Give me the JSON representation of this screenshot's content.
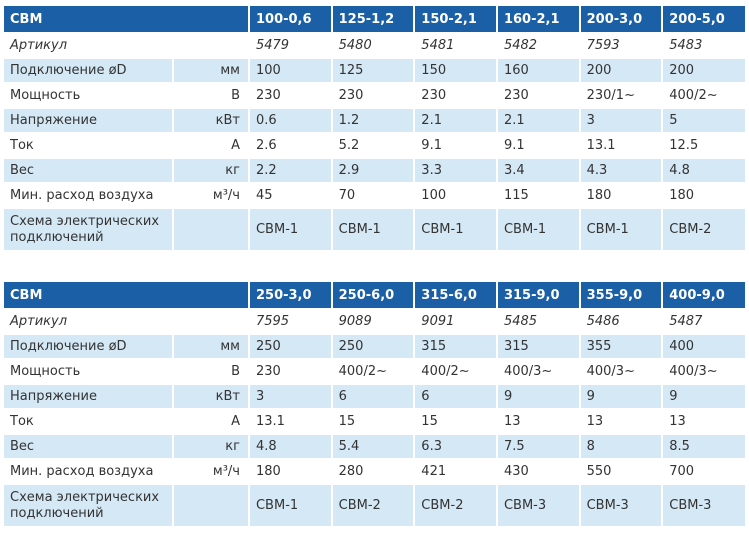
{
  "tables": [
    {
      "brand": "CBM",
      "models": [
        "100-0,6",
        "125-1,2",
        "150-2,1",
        "160-2,1",
        "200-3,0",
        "200-5,0"
      ],
      "rows": [
        {
          "label": "Артикул",
          "unit": "",
          "values": [
            "5479",
            "5480",
            "5481",
            "5482",
            "7593",
            "5483"
          ]
        },
        {
          "label": "Подключение øD",
          "unit": "мм",
          "values": [
            "100",
            "125",
            "150",
            "160",
            "200",
            "200"
          ]
        },
        {
          "label": "Мощность",
          "unit": "В",
          "values": [
            "230",
            "230",
            "230",
            "230",
            "230/1~",
            "400/2~"
          ]
        },
        {
          "label": "Напряжение",
          "unit": "кВт",
          "values": [
            "0.6",
            "1.2",
            "2.1",
            "2.1",
            "3",
            "5"
          ]
        },
        {
          "label": "Ток",
          "unit": "А",
          "values": [
            "2.6",
            "5.2",
            "9.1",
            "9.1",
            "13.1",
            "12.5"
          ]
        },
        {
          "label": "Вес",
          "unit": "кг",
          "values": [
            "2.2",
            "2.9",
            "3.3",
            "3.4",
            "4.3",
            "4.8"
          ]
        },
        {
          "label": "Мин. расход воздуха",
          "unit": "м³/ч",
          "values": [
            "45",
            "70",
            "100",
            "115",
            "180",
            "180"
          ]
        },
        {
          "label": "Схема электрических подключений",
          "unit": "",
          "values": [
            "CBM-1",
            "CBM-1",
            "CBM-1",
            "CBM-1",
            "CBM-1",
            "CBM-2"
          ]
        }
      ]
    },
    {
      "brand": "CBM",
      "models": [
        "250-3,0",
        "250-6,0",
        "315-6,0",
        "315-9,0",
        "355-9,0",
        "400-9,0"
      ],
      "rows": [
        {
          "label": "Артикул",
          "unit": "",
          "values": [
            "7595",
            "9089",
            "9091",
            "5485",
            "5486",
            "5487"
          ]
        },
        {
          "label": "Подключение øD",
          "unit": "мм",
          "values": [
            "250",
            "250",
            "315",
            "315",
            "355",
            "400"
          ]
        },
        {
          "label": "Мощность",
          "unit": "В",
          "values": [
            "230",
            "400/2~",
            "400/2~",
            "400/3~",
            "400/3~",
            "400/3~"
          ]
        },
        {
          "label": "Напряжение",
          "unit": "кВт",
          "values": [
            "3",
            "6",
            "6",
            "9",
            "9",
            "9"
          ]
        },
        {
          "label": "Ток",
          "unit": "А",
          "values": [
            "13.1",
            "15",
            "15",
            "13",
            "13",
            "13"
          ]
        },
        {
          "label": "Вес",
          "unit": "кг",
          "values": [
            "4.8",
            "5.4",
            "6.3",
            "7.5",
            "8",
            "8.5"
          ]
        },
        {
          "label": "Мин. расход воздуха",
          "unit": "м³/ч",
          "values": [
            "180",
            "280",
            "421",
            "430",
            "550",
            "700"
          ]
        },
        {
          "label": "Схема электрических подключений",
          "unit": "",
          "values": [
            "CBM-1",
            "CBM-2",
            "CBM-2",
            "CBM-3",
            "CBM-3",
            "CBM-3"
          ]
        }
      ]
    }
  ]
}
